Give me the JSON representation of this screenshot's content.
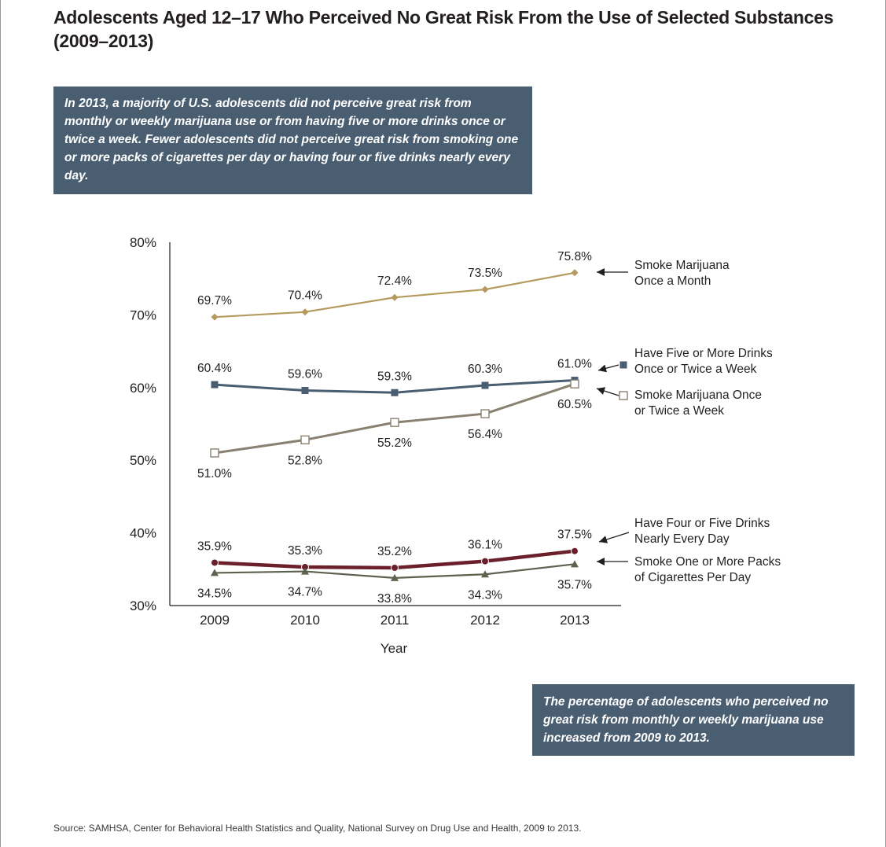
{
  "title": "Adolescents Aged 12–17 Who Perceived No Great Risk From the Use of Selected Substances (2009–2013)",
  "callouts": {
    "top": "In 2013, a majority of U.S. adolescents did not perceive great risk from monthly or weekly marijuana use or from having five or more drinks once or twice a week. Fewer adolescents did not perceive great risk from smoking one or more packs of cigarettes per day or having four or five drinks nearly every day.",
    "bottom": "The percentage of adolescents who perceived no great risk from monthly or weekly marijuana use increased from 2009 to 2013."
  },
  "source": "Source: SAMHSA, Center for Behavioral Health Statistics and Quality, National Survey on Drug Use and Health, 2009 to 2013.",
  "chart_data": {
    "type": "line",
    "title": "Adolescents Aged 12–17 Who Perceived No Great Risk From the Use of Selected Substances (2009–2013)",
    "xlabel": "Year",
    "ylabel": "",
    "categories": [
      "2009",
      "2010",
      "2011",
      "2012",
      "2013"
    ],
    "ylim": [
      30,
      80
    ],
    "yticks": [
      30,
      40,
      50,
      60,
      70,
      80
    ],
    "ytick_labels": [
      "30%",
      "40%",
      "50%",
      "60%",
      "70%",
      "80%"
    ],
    "grid": false,
    "legend": "right (direct labels with arrows)",
    "series": [
      {
        "name": "Smoke Marijuana Once a Month",
        "label_lines": [
          "Smoke Marijuana",
          "Once a Month"
        ],
        "values": [
          69.7,
          70.4,
          72.4,
          73.5,
          75.8
        ],
        "labels": [
          "69.7%",
          "70.4%",
          "72.4%",
          "73.5%",
          "75.8%"
        ],
        "label_pos": [
          "above",
          "above",
          "above",
          "above",
          "above"
        ],
        "color": "#b59a5e",
        "marker": "diamond",
        "key_marker": false
      },
      {
        "name": "Have Five or More Drinks Once or Twice a Week",
        "label_lines": [
          "Have Five or More Drinks",
          "Once or Twice a Week"
        ],
        "values": [
          60.4,
          59.6,
          59.3,
          60.3,
          61.0
        ],
        "labels": [
          "60.4%",
          "59.6%",
          "59.3%",
          "60.3%",
          "61.0%"
        ],
        "label_pos": [
          "above",
          "above",
          "above",
          "above",
          "above"
        ],
        "color": "#4a5e71",
        "marker": "square",
        "key_marker": true
      },
      {
        "name": "Smoke Marijuana Once or Twice a Week",
        "label_lines": [
          "Smoke Marijuana Once",
          "or Twice a Week"
        ],
        "values": [
          51.0,
          52.8,
          55.2,
          56.4,
          60.5
        ],
        "labels": [
          "51.0%",
          "52.8%",
          "55.2%",
          "56.4%",
          "60.5%"
        ],
        "label_pos": [
          "below",
          "below",
          "below",
          "below",
          "below"
        ],
        "color": "#8a8072",
        "marker": "open-square",
        "key_marker": true
      },
      {
        "name": "Have Four or Five Drinks Nearly Every Day",
        "label_lines": [
          "Have Four or Five Drinks",
          "Nearly Every Day"
        ],
        "values": [
          35.9,
          35.3,
          35.2,
          36.1,
          37.5
        ],
        "labels": [
          "35.9%",
          "35.3%",
          "35.2%",
          "36.1%",
          "37.5%"
        ],
        "label_pos": [
          "above",
          "above",
          "above",
          "above",
          "above"
        ],
        "color": "#6b1f2a",
        "marker": "circle",
        "key_marker": false
      },
      {
        "name": "Smoke One or More Packs of Cigarettes Per Day",
        "label_lines": [
          "Smoke One or More Packs",
          "of Cigarettes Per Day"
        ],
        "values": [
          34.5,
          34.7,
          33.8,
          34.3,
          35.7
        ],
        "labels": [
          "34.5%",
          "34.7%",
          "33.8%",
          "34.3%",
          "35.7%"
        ],
        "label_pos": [
          "below",
          "below",
          "below",
          "below",
          "below"
        ],
        "color": "#5d624f",
        "marker": "triangle",
        "key_marker": false
      }
    ]
  }
}
